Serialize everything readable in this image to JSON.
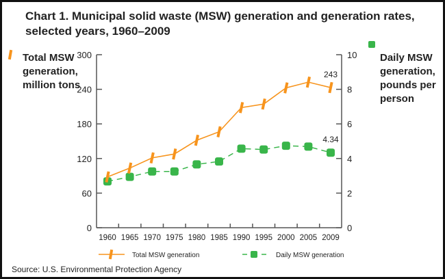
{
  "chart_data": {
    "type": "line",
    "title": "Chart 1. Municipal solid waste (MSW) generation and generation rates, selected years, 1960–2009",
    "categories": [
      "1960",
      "1965",
      "1970",
      "1975",
      "1980",
      "1985",
      "1990",
      "1995",
      "2000",
      "2005",
      "2009"
    ],
    "series": [
      {
        "name": "Total MSW generation",
        "axis": "left",
        "color": "#f7941d",
        "style": "solid",
        "marker": "bar",
        "values": [
          88.1,
          103.4,
          121.1,
          127.8,
          151.6,
          166.3,
          208.3,
          214.4,
          242.5,
          252.4,
          243
        ]
      },
      {
        "name": "Daily MSW generation",
        "axis": "right",
        "color": "#39b54a",
        "style": "dashed",
        "marker": "square",
        "values": [
          2.68,
          2.94,
          3.25,
          3.25,
          3.66,
          3.83,
          4.57,
          4.52,
          4.74,
          4.69,
          4.34
        ]
      }
    ],
    "left_axis": {
      "label": "Total MSW generation, million tons",
      "range": [
        0,
        300
      ],
      "ticks": [
        "0",
        "60",
        "120",
        "180",
        "240",
        "300"
      ]
    },
    "right_axis": {
      "label": "Daily MSW generation, pounds per person",
      "range": [
        0,
        10
      ],
      "ticks": [
        "0",
        "2",
        "4",
        "6",
        "8",
        "10"
      ]
    },
    "annotations": [
      {
        "series": 0,
        "index": 10,
        "text": "243"
      },
      {
        "series": 1,
        "index": 10,
        "text": "4.34"
      }
    ],
    "grid": false,
    "legend": "bottom"
  },
  "source": "Source: U.S. Environmental Protection Agency"
}
